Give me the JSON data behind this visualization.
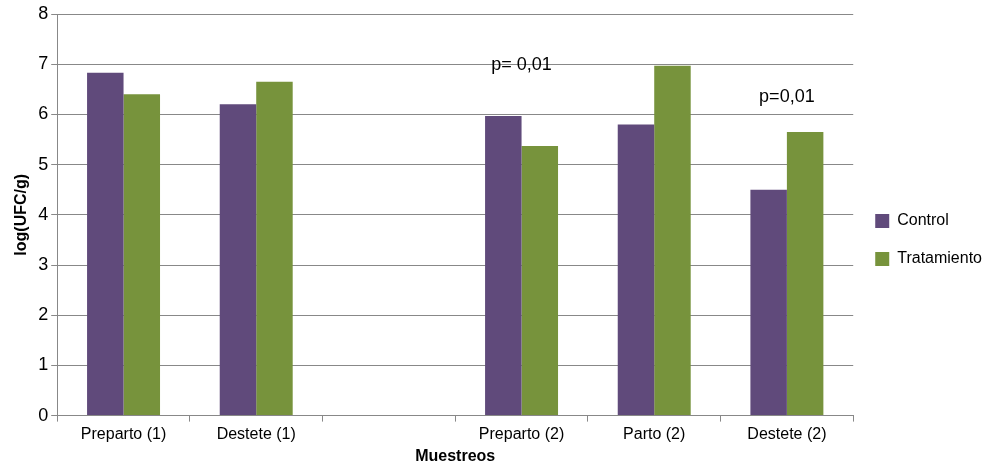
{
  "chart_data": {
    "type": "bar",
    "xlabel": "Muestreos",
    "ylabel": "log(UFC/g)",
    "categories": [
      "Preparto (1)",
      "Destete (1)",
      null,
      "Preparto (2)",
      "Parto (2)",
      "Destete (2)"
    ],
    "series": [
      {
        "name": "Control",
        "color": "#604a7b",
        "values": [
          6.83,
          6.2,
          null,
          5.97,
          5.8,
          4.5
        ]
      },
      {
        "name": "Tratamiento",
        "color": "#77933c",
        "values": [
          6.4,
          6.65,
          null,
          5.37,
          6.97,
          5.65
        ]
      }
    ],
    "ylim": [
      0,
      8
    ],
    "yticks": [
      0,
      1,
      2,
      3,
      4,
      5,
      6,
      7,
      8
    ],
    "grid": "y",
    "legend": "right",
    "annotations": [
      "p= 0,01",
      "p=0,01"
    ]
  }
}
